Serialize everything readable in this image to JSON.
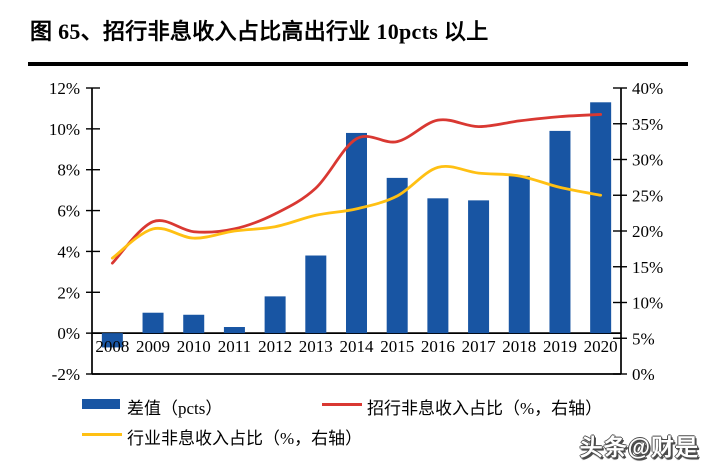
{
  "header": {
    "title": "图 65、招行非息收入占比高出行业 10pcts 以上"
  },
  "watermark": {
    "text": "头条@财是"
  },
  "colors": {
    "bar_blue": "#1855A3",
    "line_red": "#D93832",
    "line_yellow": "#FFC013",
    "axis_black": "#000000"
  },
  "chart_data": {
    "type": "combo-bar-line",
    "title": "招行非息收入占比高出行业 10pcts 以上",
    "categories": [
      "2008",
      "2009",
      "2010",
      "2011",
      "2012",
      "2013",
      "2014",
      "2015",
      "2016",
      "2017",
      "2018",
      "2019",
      "2020"
    ],
    "bar_series": {
      "name": "差值（pcts）",
      "axis": "left",
      "color": "#1855A3",
      "values": [
        -0.7,
        1.0,
        0.9,
        0.3,
        1.8,
        3.8,
        9.8,
        7.6,
        6.6,
        6.5,
        7.7,
        9.9,
        11.3
      ]
    },
    "line_series": [
      {
        "name": "招行非息收入占比（%，右轴）",
        "axis": "right",
        "color": "#D93832",
        "smooth": true,
        "values": [
          15.5,
          21.3,
          19.9,
          20.3,
          22.4,
          26.0,
          32.9,
          32.5,
          35.5,
          34.6,
          35.4,
          36.0,
          36.3
        ]
      },
      {
        "name": "行业非息收入占比（%，右轴）",
        "axis": "right",
        "color": "#FFC013",
        "smooth": true,
        "values": [
          16.2,
          20.3,
          19.0,
          20.0,
          20.6,
          22.2,
          23.1,
          24.9,
          28.9,
          28.1,
          27.7,
          26.1,
          25.0
        ]
      }
    ],
    "left_axis": {
      "min": -2,
      "max": 12,
      "step": 2,
      "tick_labels": [
        "12%",
        "10%",
        "8%",
        "6%",
        "4%",
        "2%",
        "0%",
        "-2%"
      ]
    },
    "right_axis": {
      "min": 0,
      "max": 40,
      "step": 5,
      "tick_labels": [
        "40%",
        "35%",
        "30%",
        "25%",
        "20%",
        "15%",
        "10%",
        "5%",
        "0%"
      ]
    },
    "grid": false,
    "legend_position": "bottom"
  }
}
